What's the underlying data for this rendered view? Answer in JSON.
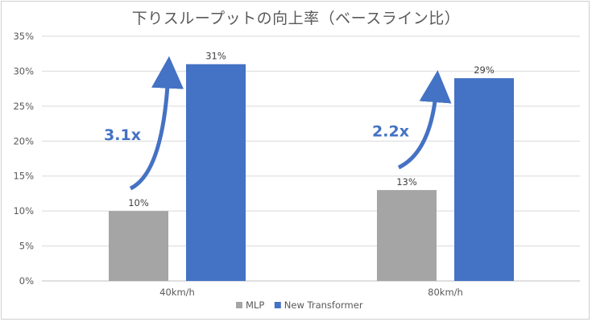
{
  "chart_data": {
    "type": "bar",
    "title": "下りスループットの向上率（ベースライン比）",
    "categories": [
      "40km/h",
      "80km/h"
    ],
    "series": [
      {
        "name": "MLP",
        "values": [
          10,
          13
        ],
        "labels": [
          "10%",
          "13%"
        ],
        "color": "#A5A5A5"
      },
      {
        "name": "New Transformer",
        "values": [
          31,
          29
        ],
        "labels": [
          "31%",
          "29%"
        ],
        "color": "#4472C4"
      }
    ],
    "ylim": [
      0,
      35
    ],
    "yticks": [
      0,
      5,
      10,
      15,
      20,
      25,
      30,
      35
    ],
    "ytick_labels": [
      "0%",
      "5%",
      "10%",
      "15%",
      "20%",
      "25%",
      "30%",
      "35%"
    ],
    "grid": true,
    "legend_position": "bottom",
    "annotations": [
      {
        "category": "40km/h",
        "text": "3.1x",
        "color": "#4472C4"
      },
      {
        "category": "80km/h",
        "text": "2.2x",
        "color": "#4472C4"
      }
    ]
  }
}
